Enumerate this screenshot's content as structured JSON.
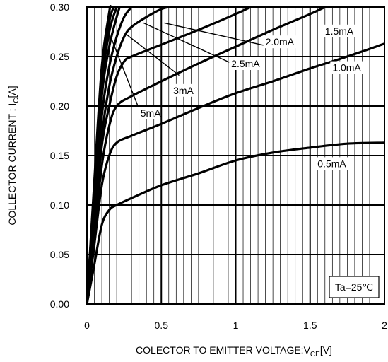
{
  "chart_data": {
    "type": "line",
    "xlabel": "COLECTOR TO EMITTER VOLTAGE:V",
    "xlabel_sub": "CE",
    "xlabel_unit": "[V]",
    "ylabel": "COLLECTOR CURRENT : I",
    "ylabel_sub": "C",
    "ylabel_unit": "[A]",
    "xlim": [
      0,
      2
    ],
    "ylim": [
      0,
      0.3
    ],
    "x_ticks": [
      "0",
      "0.5",
      "1",
      "1.5",
      "2"
    ],
    "y_ticks": [
      "0.00",
      "0.05",
      "0.10",
      "0.15",
      "0.20",
      "0.25",
      "0.30"
    ],
    "annotation": "Ta=25℃",
    "grid": true,
    "series": [
      {
        "name": "0.5mA",
        "x": [
          0,
          0.05,
          0.1,
          0.15,
          0.2,
          0.3,
          0.5,
          0.75,
          1.0,
          1.25,
          1.5,
          1.75,
          2.0
        ],
        "y": [
          0,
          0.04,
          0.08,
          0.095,
          0.1,
          0.107,
          0.12,
          0.132,
          0.145,
          0.153,
          0.158,
          0.162,
          0.163
        ]
      },
      {
        "name": "1.0mA",
        "x": [
          0,
          0.05,
          0.1,
          0.15,
          0.2,
          0.3,
          0.5,
          0.75,
          1.0,
          1.25,
          1.5,
          1.75,
          2.0
        ],
        "y": [
          0,
          0.06,
          0.12,
          0.15,
          0.163,
          0.17,
          0.182,
          0.198,
          0.213,
          0.225,
          0.238,
          0.25,
          0.263
        ]
      },
      {
        "name": "1.5mA",
        "x": [
          0,
          0.05,
          0.1,
          0.15,
          0.2,
          0.3,
          0.5,
          0.75,
          1.0,
          1.25,
          1.5,
          1.6
        ],
        "y": [
          0,
          0.07,
          0.14,
          0.18,
          0.2,
          0.21,
          0.225,
          0.243,
          0.26,
          0.277,
          0.293,
          0.3
        ]
      },
      {
        "name": "2.0mA",
        "x": [
          0,
          0.05,
          0.1,
          0.15,
          0.2,
          0.25,
          0.3,
          0.5,
          0.75,
          1.0,
          1.1
        ],
        "y": [
          0,
          0.08,
          0.16,
          0.2,
          0.23,
          0.245,
          0.25,
          0.262,
          0.277,
          0.293,
          0.3
        ]
      },
      {
        "name": "2.5mA",
        "x": [
          0,
          0.05,
          0.1,
          0.15,
          0.2,
          0.25,
          0.3,
          0.4,
          0.5,
          0.55
        ],
        "y": [
          0,
          0.09,
          0.17,
          0.22,
          0.25,
          0.27,
          0.28,
          0.29,
          0.298,
          0.3
        ]
      },
      {
        "name": "3mA",
        "x": [
          0,
          0.05,
          0.1,
          0.15,
          0.2,
          0.25,
          0.3
        ],
        "y": [
          0,
          0.1,
          0.19,
          0.24,
          0.27,
          0.29,
          0.3
        ]
      },
      {
        "name": "5mA",
        "x": [
          0,
          0.05,
          0.1,
          0.15,
          0.2,
          0.22
        ],
        "y": [
          0,
          0.11,
          0.21,
          0.26,
          0.29,
          0.3
        ]
      },
      {
        "name": "",
        "x": [
          0,
          0.05,
          0.1,
          0.15,
          0.2
        ],
        "y": [
          0,
          0.115,
          0.22,
          0.275,
          0.3
        ]
      },
      {
        "name": "",
        "x": [
          0,
          0.05,
          0.1,
          0.15,
          0.18
        ],
        "y": [
          0,
          0.12,
          0.23,
          0.285,
          0.3
        ]
      },
      {
        "name": "",
        "x": [
          0,
          0.05,
          0.1,
          0.15,
          0.16
        ],
        "y": [
          0,
          0.125,
          0.24,
          0.295,
          0.3
        ]
      }
    ],
    "labels": [
      {
        "text": "0.5mA",
        "x": 1.55,
        "y": 0.139,
        "lx": 1.58,
        "ly": 0.152
      },
      {
        "text": "1.0mA",
        "x": 1.65,
        "y": 0.236,
        "lx": 1.62,
        "ly": 0.23
      },
      {
        "text": "1.5mA",
        "x": 1.6,
        "y": 0.273,
        "lx": 1.5,
        "ly": 0.292
      },
      {
        "text": "2.0mA",
        "x": 1.2,
        "y": 0.262,
        "lx": 0.52,
        "ly": 0.284,
        "lx2": 1.2,
        "ly2": 0.261
      },
      {
        "text": "2.5mA",
        "x": 0.97,
        "y": 0.24,
        "lx": 0.38,
        "ly": 0.284,
        "lx2": 0.96,
        "ly2": 0.244
      },
      {
        "text": "3mA",
        "x": 0.58,
        "y": 0.213,
        "lx": 0.26,
        "ly": 0.273,
        "lx2": 0.62,
        "ly2": 0.231
      },
      {
        "text": "5mA",
        "x": 0.36,
        "y": 0.19,
        "lx": 0.16,
        "ly": 0.27,
        "lx2": 0.34,
        "ly2": 0.201
      }
    ]
  }
}
